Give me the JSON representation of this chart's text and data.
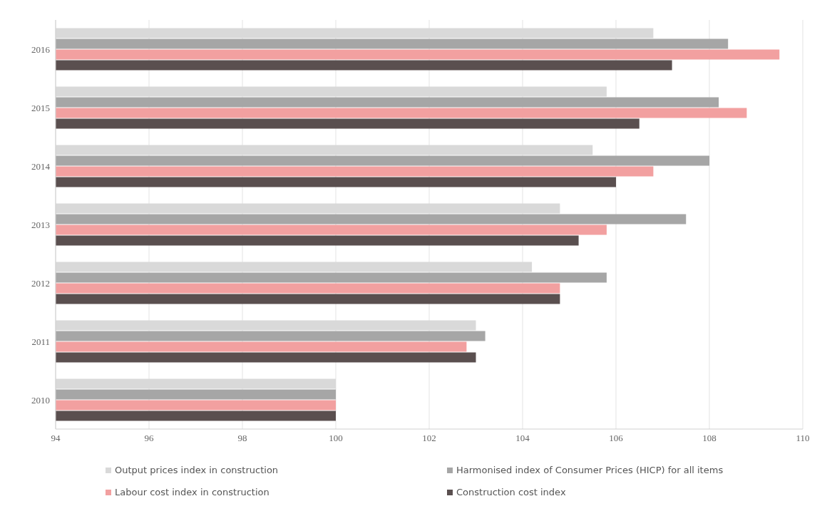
{
  "chart_data": {
    "type": "bar",
    "orientation": "horizontal",
    "categories": [
      "2016",
      "2015",
      "2014",
      "2013",
      "2012",
      "2011",
      "2010"
    ],
    "series": [
      {
        "name": "Output prices index in construction",
        "color": "#d9d9d9",
        "values": [
          106.8,
          105.8,
          105.5,
          104.8,
          104.2,
          103.0,
          100
        ]
      },
      {
        "name": "Harmonised index of Consumer Prices (HICP) for all items",
        "color": "#a6a6a6",
        "values": [
          108.4,
          108.2,
          108.0,
          107.5,
          105.8,
          103.2,
          100
        ]
      },
      {
        "name": "Labour cost index in construction",
        "color": "#f2a0a0",
        "values": [
          109.5,
          108.8,
          106.8,
          105.8,
          104.8,
          102.8,
          100
        ]
      },
      {
        "name": "Construction cost index",
        "color": "#5a4f4f",
        "values": [
          107.2,
          106.5,
          106.0,
          105.2,
          104.8,
          103.0,
          100
        ]
      }
    ],
    "xlim": [
      94,
      110
    ],
    "xticks": [
      94,
      96,
      98,
      100,
      102,
      104,
      106,
      108,
      110
    ],
    "grid": "x",
    "legend": "bottom"
  }
}
